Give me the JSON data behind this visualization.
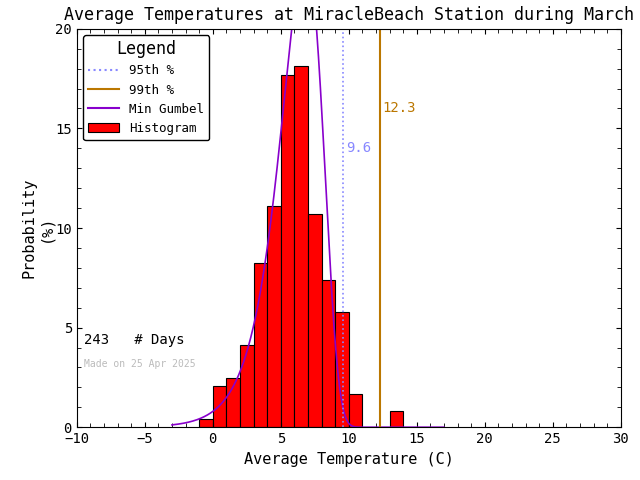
{
  "title": "Average Temperatures at MiracleBeach Station during March",
  "xlabel": "Average Temperature (C)",
  "ylabel": "Probability\n(%)",
  "xlim": [
    -10,
    30
  ],
  "ylim": [
    0,
    20
  ],
  "xticks": [
    -10,
    -5,
    0,
    5,
    10,
    15,
    20,
    25,
    30
  ],
  "yticks": [
    0,
    5,
    10,
    15,
    20
  ],
  "bar_lefts": [
    -1,
    0,
    1,
    2,
    3,
    4,
    5,
    6,
    7,
    8,
    9,
    10,
    13
  ],
  "bar_rights": [
    0,
    1,
    2,
    3,
    4,
    5,
    6,
    7,
    8,
    9,
    10,
    11,
    14
  ],
  "bar_heights": [
    0.41,
    2.06,
    2.47,
    4.12,
    8.23,
    11.11,
    17.7,
    18.11,
    10.7,
    7.41,
    5.76,
    1.65,
    0.82
  ],
  "bar_color": "#ff0000",
  "bar_edge_color": "#000000",
  "percentile_95": 9.6,
  "percentile_99": 12.3,
  "percentile_95_color": "#8888ff",
  "percentile_99_color": "#bb7700",
  "gumbel_color": "#8800cc",
  "gumbel_mu": 6.8,
  "gumbel_beta": 1.55,
  "n_days": 243,
  "made_on": "Made on 25 Apr 2025",
  "made_on_color": "#bbbbbb",
  "background_color": "#ffffff",
  "title_fontsize": 12,
  "axis_fontsize": 11,
  "legend_fontsize": 9,
  "tick_labelsize": 10
}
